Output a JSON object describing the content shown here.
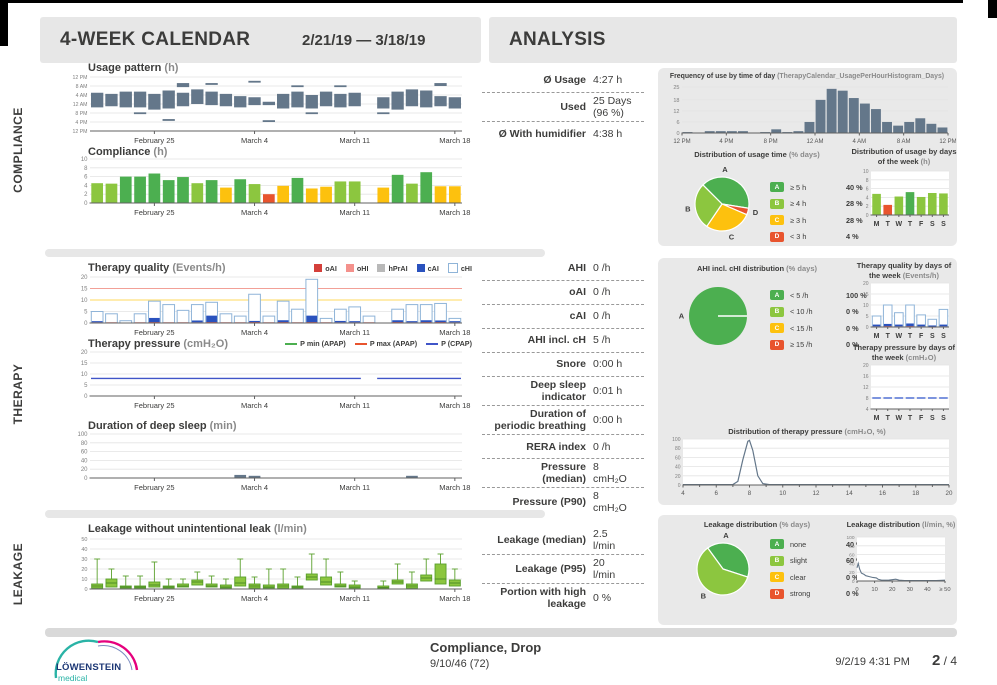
{
  "header": {
    "calendar_title": "4-WEEK CALENDAR",
    "date_range": "2/21/19 — 3/18/19",
    "analysis_title": "ANALYSIS"
  },
  "sidebar_labels": [
    "COMPLIANCE",
    "THERAPY",
    "LEAKAGE"
  ],
  "calendar_x_ticks": [
    {
      "day": 5,
      "label": "February 25"
    },
    {
      "day": 12,
      "label": "March 4"
    },
    {
      "day": 19,
      "label": "March 11"
    },
    {
      "day": 26,
      "label": "March 18"
    }
  ],
  "legend_colors": {
    "A": "#4caf50",
    "B": "#8cc63f",
    "C": "#fdc10e",
    "D": "#e8542e"
  },
  "colors": {
    "bar_slate": "#64778a",
    "cai_blue": "#2a52be",
    "chi_border": "#8fb4d8",
    "oai_red": "#d43f3a",
    "ohi_pink": "#f4918c",
    "hprai_gray": "#b9b9b9",
    "cpap_blue": "#4055c8",
    "pmin_green": "#4caf50",
    "pmax_red": "#e8542e",
    "box_fill": "#8cc63f",
    "box_stroke": "#5aa02c",
    "hline_red": "#f2a097",
    "hline_yellow": "#ffd95e"
  },
  "stats": {
    "compliance": [
      {
        "label": "Ø Usage",
        "value": "4:27 h"
      },
      {
        "label": "Used",
        "value": "25 Days\n(96 %)"
      },
      {
        "label": "Ø With humidifier",
        "value": "4:38 h"
      }
    ],
    "therapy": [
      {
        "label": "AHI",
        "value": "0 /h"
      },
      {
        "label": "oAI",
        "value": "0 /h"
      },
      {
        "label": "cAI",
        "value": "0 /h"
      },
      {
        "label": "AHI incl. cH",
        "value": "5 /h"
      },
      {
        "label": "Snore",
        "value": "0:00 h"
      },
      {
        "label": "Deep sleep\nindicator",
        "value": "0:01 h"
      },
      {
        "label": "Duration of\nperiodic breathing",
        "value": "0:00 h"
      },
      {
        "label": "RERA index",
        "value": "0 /h"
      },
      {
        "label": "Pressure\n(median)",
        "value": "8\ncmH₂O"
      },
      {
        "label": "Pressure (P90)",
        "value": "8\ncmH₂O"
      }
    ],
    "leakage": [
      {
        "label": "Leakage (median)",
        "value": "2.5\nl/min"
      },
      {
        "label": "Leakage (P95)",
        "value": "20\nl/min"
      },
      {
        "label": "Portion with high\nleakage",
        "value": "0 %"
      }
    ]
  },
  "chart_data": [
    {
      "id": "usage_pattern",
      "type": "interval-day",
      "title": "Usage pattern",
      "unit": "(h)",
      "y_ticks": [
        "12 PM",
        "8 AM",
        "4 AM",
        "12 AM",
        "8 PM",
        "4 PM",
        "12 PM"
      ],
      "days": 26,
      "intervals": [
        [
          [
            10.5,
            17
          ]
        ],
        [
          [
            11,
            16.5
          ]
        ],
        [
          [
            10.5,
            17.5
          ]
        ],
        [
          [
            10.5,
            17.5
          ],
          [
            7.5,
            8.3
          ]
        ],
        [
          [
            9.5,
            16.5
          ]
        ],
        [
          [
            10,
            18
          ],
          [
            4.5,
            5.3
          ]
        ],
        [
          [
            11,
            17
          ],
          [
            19.5,
            21.3
          ]
        ],
        [
          [
            12,
            18.5
          ]
        ],
        [
          [
            11.5,
            17.5
          ],
          [
            20.5,
            21.3
          ]
        ],
        [
          [
            11,
            16.5
          ]
        ],
        [
          [
            10.5,
            15.5
          ]
        ],
        [
          [
            11.5,
            15
          ],
          [
            21.5,
            22.3
          ]
        ],
        [
          [
            11.5,
            13
          ],
          [
            4,
            4.8
          ]
        ],
        [
          [
            10,
            16.5
          ]
        ],
        [
          [
            10.5,
            17.5
          ],
          [
            19.5,
            20.3
          ]
        ],
        [
          [
            10,
            16
          ],
          [
            7.5,
            8.3
          ]
        ],
        [
          [
            11,
            17.5
          ]
        ],
        [
          [
            10.5,
            16.5
          ],
          [
            19.5,
            20.3
          ]
        ],
        [
          [
            11,
            17
          ]
        ],
        [],
        [
          [
            10,
            15
          ],
          [
            7.5,
            8.3
          ]
        ],
        [
          [
            9.5,
            17.5
          ]
        ],
        [
          [
            11,
            18.5
          ]
        ],
        [
          [
            10.5,
            18
          ]
        ],
        [
          [
            11,
            15.5
          ],
          [
            20,
            21.3
          ]
        ],
        [
          [
            10,
            15
          ]
        ]
      ]
    },
    {
      "id": "compliance",
      "type": "bar",
      "title": "Compliance",
      "unit": "(h)",
      "y_ticks": [
        0,
        2,
        4,
        6,
        8,
        10
      ],
      "y_max": 10,
      "values": [
        4.5,
        4.4,
        6,
        6,
        6.7,
        5.2,
        5.9,
        4.5,
        5.2,
        3.5,
        5.4,
        4.3,
        2,
        3.9,
        5.7,
        3.3,
        3.7,
        4.9,
        4.9,
        0,
        3.5,
        6.4,
        4.4,
        7,
        3.8,
        3.8
      ],
      "bands": [
        "B",
        "B",
        "A",
        "A",
        "A",
        "A",
        "A",
        "B",
        "A",
        "C",
        "A",
        "B",
        "D",
        "C",
        "A",
        "C",
        "C",
        "B",
        "B",
        "",
        "C",
        "A",
        "B",
        "A",
        "C",
        "C"
      ]
    },
    {
      "id": "therapy_quality",
      "type": "bar",
      "title": "Therapy quality",
      "unit": "(Events/h)",
      "y_ticks": [
        0,
        5,
        10,
        15,
        20
      ],
      "y_max": 20,
      "hlines": [
        {
          "y": 15,
          "color": "#f2a097"
        },
        {
          "y": 10,
          "color": "#ffd95e"
        }
      ],
      "legend": [
        {
          "label": "oAI",
          "color": "#d43f3a"
        },
        {
          "label": "oHI",
          "color": "#f4918c"
        },
        {
          "label": "hPrAI",
          "color": "#b9b9b9"
        },
        {
          "label": "cAI",
          "color": "#2a52be"
        },
        {
          "label": "cHI",
          "color": "#ffffff",
          "border": "#8fb4d8"
        }
      ],
      "chi": [
        5,
        4,
        1,
        4,
        9.5,
        8,
        5.5,
        8,
        9,
        4,
        3,
        12.5,
        3,
        9.5,
        6,
        19,
        2,
        6,
        7,
        3,
        0,
        6,
        8,
        8,
        8.5,
        2
      ],
      "cai": [
        0.5,
        0,
        0,
        0,
        1.8,
        0,
        0,
        0.8,
        2.8,
        0,
        0,
        0.5,
        0,
        0.8,
        0,
        2.8,
        0,
        0.6,
        0.5,
        0,
        0,
        0.8,
        0.5,
        0.8,
        0.7,
        0.5
      ],
      "oai": [
        0.3,
        0.3,
        0,
        0.3,
        0.4,
        0.3,
        0.3,
        0.3,
        0.4,
        0.3,
        0.3,
        0.4,
        0.3,
        0.4,
        0.3,
        0.4,
        0.3,
        0.3,
        0.3,
        0.3,
        0,
        0.4,
        0.3,
        0.4,
        0.4,
        0.3
      ]
    },
    {
      "id": "therapy_pressure",
      "type": "line",
      "title": "Therapy pressure",
      "unit": "(cmH₂O)",
      "y_ticks": [
        0,
        5,
        10,
        15,
        20
      ],
      "y_max": 20,
      "legend": [
        {
          "label": "P min (APAP)",
          "color": "#4caf50"
        },
        {
          "label": "P max (APAP)",
          "color": "#e8542e"
        },
        {
          "label": "P (CPAP)",
          "color": "#4055c8"
        }
      ],
      "cpap_value": 8,
      "gap_days": [
        20
      ]
    },
    {
      "id": "deep_sleep",
      "type": "bar",
      "title": "Duration of deep sleep",
      "unit": "(min)",
      "y_ticks": [
        0,
        20,
        40,
        60,
        80,
        100
      ],
      "y_max": 100,
      "values": [
        0,
        0,
        0,
        0,
        0,
        0,
        0,
        0,
        0,
        0,
        7,
        5,
        0,
        0,
        0,
        0,
        0,
        0,
        0,
        0,
        0,
        0,
        5,
        0,
        0,
        0
      ]
    },
    {
      "id": "leakage_box",
      "type": "boxplot",
      "title": "Leakage without unintentional leak",
      "unit": "(l/min)",
      "y_ticks": [
        0,
        10,
        20,
        30,
        40,
        50
      ],
      "y_max": 50,
      "boxes": [
        [
          1,
          5,
          3,
          30
        ],
        [
          2,
          10,
          6,
          20
        ],
        [
          1,
          3,
          2,
          13
        ],
        [
          1,
          3,
          2,
          13
        ],
        [
          2,
          7,
          4,
          27
        ],
        [
          1,
          3,
          2,
          10
        ],
        [
          2,
          5,
          3,
          10
        ],
        [
          4,
          9,
          7,
          17
        ],
        [
          2,
          5,
          3,
          13
        ],
        [
          1,
          4,
          2,
          10
        ],
        [
          3,
          12,
          6,
          30
        ],
        [
          1,
          5,
          3,
          12
        ],
        [
          1,
          4,
          2,
          20
        ],
        [
          1,
          5,
          3,
          20
        ],
        [
          1,
          3,
          2,
          12
        ],
        [
          9,
          15,
          12,
          35
        ],
        [
          4,
          12,
          7,
          30
        ],
        [
          2,
          5,
          3,
          17
        ],
        [
          1,
          4,
          2,
          8
        ],
        null,
        [
          0.5,
          3,
          1.5,
          8
        ],
        [
          5,
          9,
          7,
          25
        ],
        [
          1,
          5,
          3,
          17
        ],
        [
          8,
          14,
          11,
          30
        ],
        [
          5,
          25,
          10,
          35
        ],
        [
          3,
          9,
          6,
          20
        ]
      ]
    },
    {
      "id": "freq_hour",
      "type": "bar",
      "title": "Frequency of use by time of day",
      "unit": "(TherapyCalendar_UsagePerHourHistogram_Days)",
      "y_ticks": [
        0,
        6,
        12,
        18,
        25
      ],
      "y_max": 25,
      "x_ticks": [
        "12 PM",
        "4 PM",
        "8 PM",
        "12 AM",
        "4 AM",
        "8 AM",
        "12 PM"
      ],
      "values": [
        0.5,
        0,
        1,
        1,
        1,
        1,
        0,
        0.5,
        2,
        0.5,
        1,
        6,
        18,
        24,
        23,
        19,
        16,
        13,
        6,
        4,
        6,
        8,
        5,
        3
      ]
    },
    {
      "id": "usage_pie",
      "type": "pie",
      "title": "Distribution of usage time",
      "unit": "(% days)",
      "start": -135,
      "pie": [
        {
          "letter": "A",
          "value": 40,
          "label_angle": -85
        },
        {
          "letter": "D",
          "value": 4,
          "label_angle": 14
        },
        {
          "letter": "C",
          "value": 28,
          "label_angle": 74
        },
        {
          "letter": "B",
          "value": 28,
          "label_angle": 172
        }
      ],
      "legend": [
        {
          "letter": "A",
          "label": "≥ 5 h",
          "pct": "40 %"
        },
        {
          "letter": "B",
          "label": "≥ 4 h",
          "pct": "28 %"
        },
        {
          "letter": "C",
          "label": "≥ 3 h",
          "pct": "28 %"
        },
        {
          "letter": "D",
          "label": "< 3 h",
          "pct": "4 %"
        }
      ]
    },
    {
      "id": "usage_week",
      "type": "bar",
      "title": "Distribution of usage by days of the week",
      "unit": "(h)",
      "y_ticks": [
        0,
        2,
        4,
        6,
        8,
        10
      ],
      "y_max": 10,
      "days": [
        "M",
        "T",
        "W",
        "T",
        "F",
        "S",
        "S"
      ],
      "values": [
        4.8,
        2.3,
        4.2,
        5.2,
        4.1,
        5,
        4.9
      ],
      "bar_colors": [
        "#8cc63f",
        "#e8542e",
        "#8cc63f",
        "#4caf50",
        "#8cc63f",
        "#8cc63f",
        "#8cc63f"
      ]
    },
    {
      "id": "ahi_pie",
      "type": "pie",
      "title": "AHI incl. cHI distribution",
      "unit": "(% days)",
      "start": 0,
      "pie": [
        {
          "letter": "A",
          "value": 100,
          "label_angle": 180
        }
      ],
      "legend": [
        {
          "letter": "A",
          "label": "< 5 /h",
          "pct": "100 %"
        },
        {
          "letter": "B",
          "label": "< 10 /h",
          "pct": "0 %"
        },
        {
          "letter": "C",
          "label": "< 15 /h",
          "pct": "0 %"
        },
        {
          "letter": "D",
          "label": "≥ 15 /h",
          "pct": "0 %"
        }
      ]
    },
    {
      "id": "quality_week",
      "type": "bar",
      "title": "Therapy quality by days of the week",
      "unit": "(Events/h)",
      "y_ticks": [
        0,
        5,
        10,
        15,
        20
      ],
      "y_max": 20,
      "days": [
        "M",
        "T",
        "W",
        "T",
        "F",
        "S",
        "S"
      ],
      "chi": [
        5,
        10,
        6.5,
        10,
        5.5,
        3.5,
        8
      ],
      "cai": [
        0.8,
        1,
        0.8,
        1.2,
        0.8,
        0.5,
        0.8
      ],
      "oai": [
        0.3,
        0.4,
        0.3,
        0.4,
        0.3,
        0.2,
        0.3
      ]
    },
    {
      "id": "pressure_week",
      "type": "dash",
      "title": "Therapy pressure by days of the week",
      "unit": "(cmH₂O)",
      "y_ticks": [
        4,
        8,
        12,
        16,
        20
      ],
      "y_min": 4,
      "y_max": 20,
      "days": [
        "M",
        "T",
        "W",
        "T",
        "F",
        "S",
        "S"
      ],
      "value": 8
    },
    {
      "id": "pressure_dist",
      "type": "line",
      "title": "Distribution of therapy pressure",
      "unit": "(cmH₂O, %)",
      "y_ticks": [
        0,
        20,
        40,
        60,
        80,
        100
      ],
      "y_max": 100,
      "x_min": 4,
      "x_max": 20,
      "x_label_ticks": [
        4,
        6,
        8,
        10,
        12,
        14,
        16,
        18,
        20
      ],
      "points": [
        [
          4,
          1
        ],
        [
          7,
          1
        ],
        [
          7.3,
          8
        ],
        [
          7.6,
          55
        ],
        [
          7.9,
          95
        ],
        [
          8,
          97
        ],
        [
          8.2,
          75
        ],
        [
          8.5,
          20
        ],
        [
          8.8,
          3
        ],
        [
          9.2,
          1
        ],
        [
          20,
          1
        ]
      ]
    },
    {
      "id": "leak_pie",
      "type": "pie",
      "title": "Leakage distribution",
      "unit": "(% days)",
      "start": -126,
      "pie": [
        {
          "letter": "A",
          "value": 40,
          "label_angle": -85
        },
        {
          "letter": "B",
          "value": 60,
          "label_angle": 126
        }
      ],
      "legend": [
        {
          "letter": "A",
          "label": "none",
          "pct": "40 %"
        },
        {
          "letter": "B",
          "label": "slight",
          "pct": "60 %"
        },
        {
          "letter": "C",
          "label": "clear",
          "pct": "0 %"
        },
        {
          "letter": "D",
          "label": "strong",
          "pct": "0 %"
        }
      ]
    },
    {
      "id": "leak_line",
      "type": "line",
      "title": "Leakage distribution",
      "unit": "(l/min, %)",
      "y_ticks": [
        0,
        20,
        40,
        60,
        80,
        100
      ],
      "y_max": 100,
      "x_max": 50,
      "x_tick_labels": [
        "0",
        "10",
        "20",
        "30",
        "40",
        "≥ 50"
      ],
      "points": [
        [
          0,
          30
        ],
        [
          0.7,
          40
        ],
        [
          1.5,
          27
        ],
        [
          2.5,
          18
        ],
        [
          4,
          15
        ],
        [
          5,
          12
        ],
        [
          7,
          10
        ],
        [
          9,
          8
        ],
        [
          11,
          7
        ],
        [
          12,
          4
        ],
        [
          14,
          2
        ],
        [
          16,
          2
        ],
        [
          18,
          2
        ],
        [
          20,
          3
        ],
        [
          22,
          4
        ],
        [
          24,
          2
        ],
        [
          27,
          1
        ],
        [
          30,
          1
        ],
        [
          35,
          1
        ],
        [
          40,
          1
        ],
        [
          45,
          1
        ],
        [
          50,
          2
        ]
      ]
    }
  ],
  "footer": {
    "report_title": "Compliance, Drop",
    "patient": "9/10/46 (72)",
    "timestamp": "9/2/19 4:31 PM",
    "page_current": "2",
    "page_rest": "/ 4",
    "logo_primary": "LÖWENSTEIN",
    "logo_secondary": "medical"
  }
}
